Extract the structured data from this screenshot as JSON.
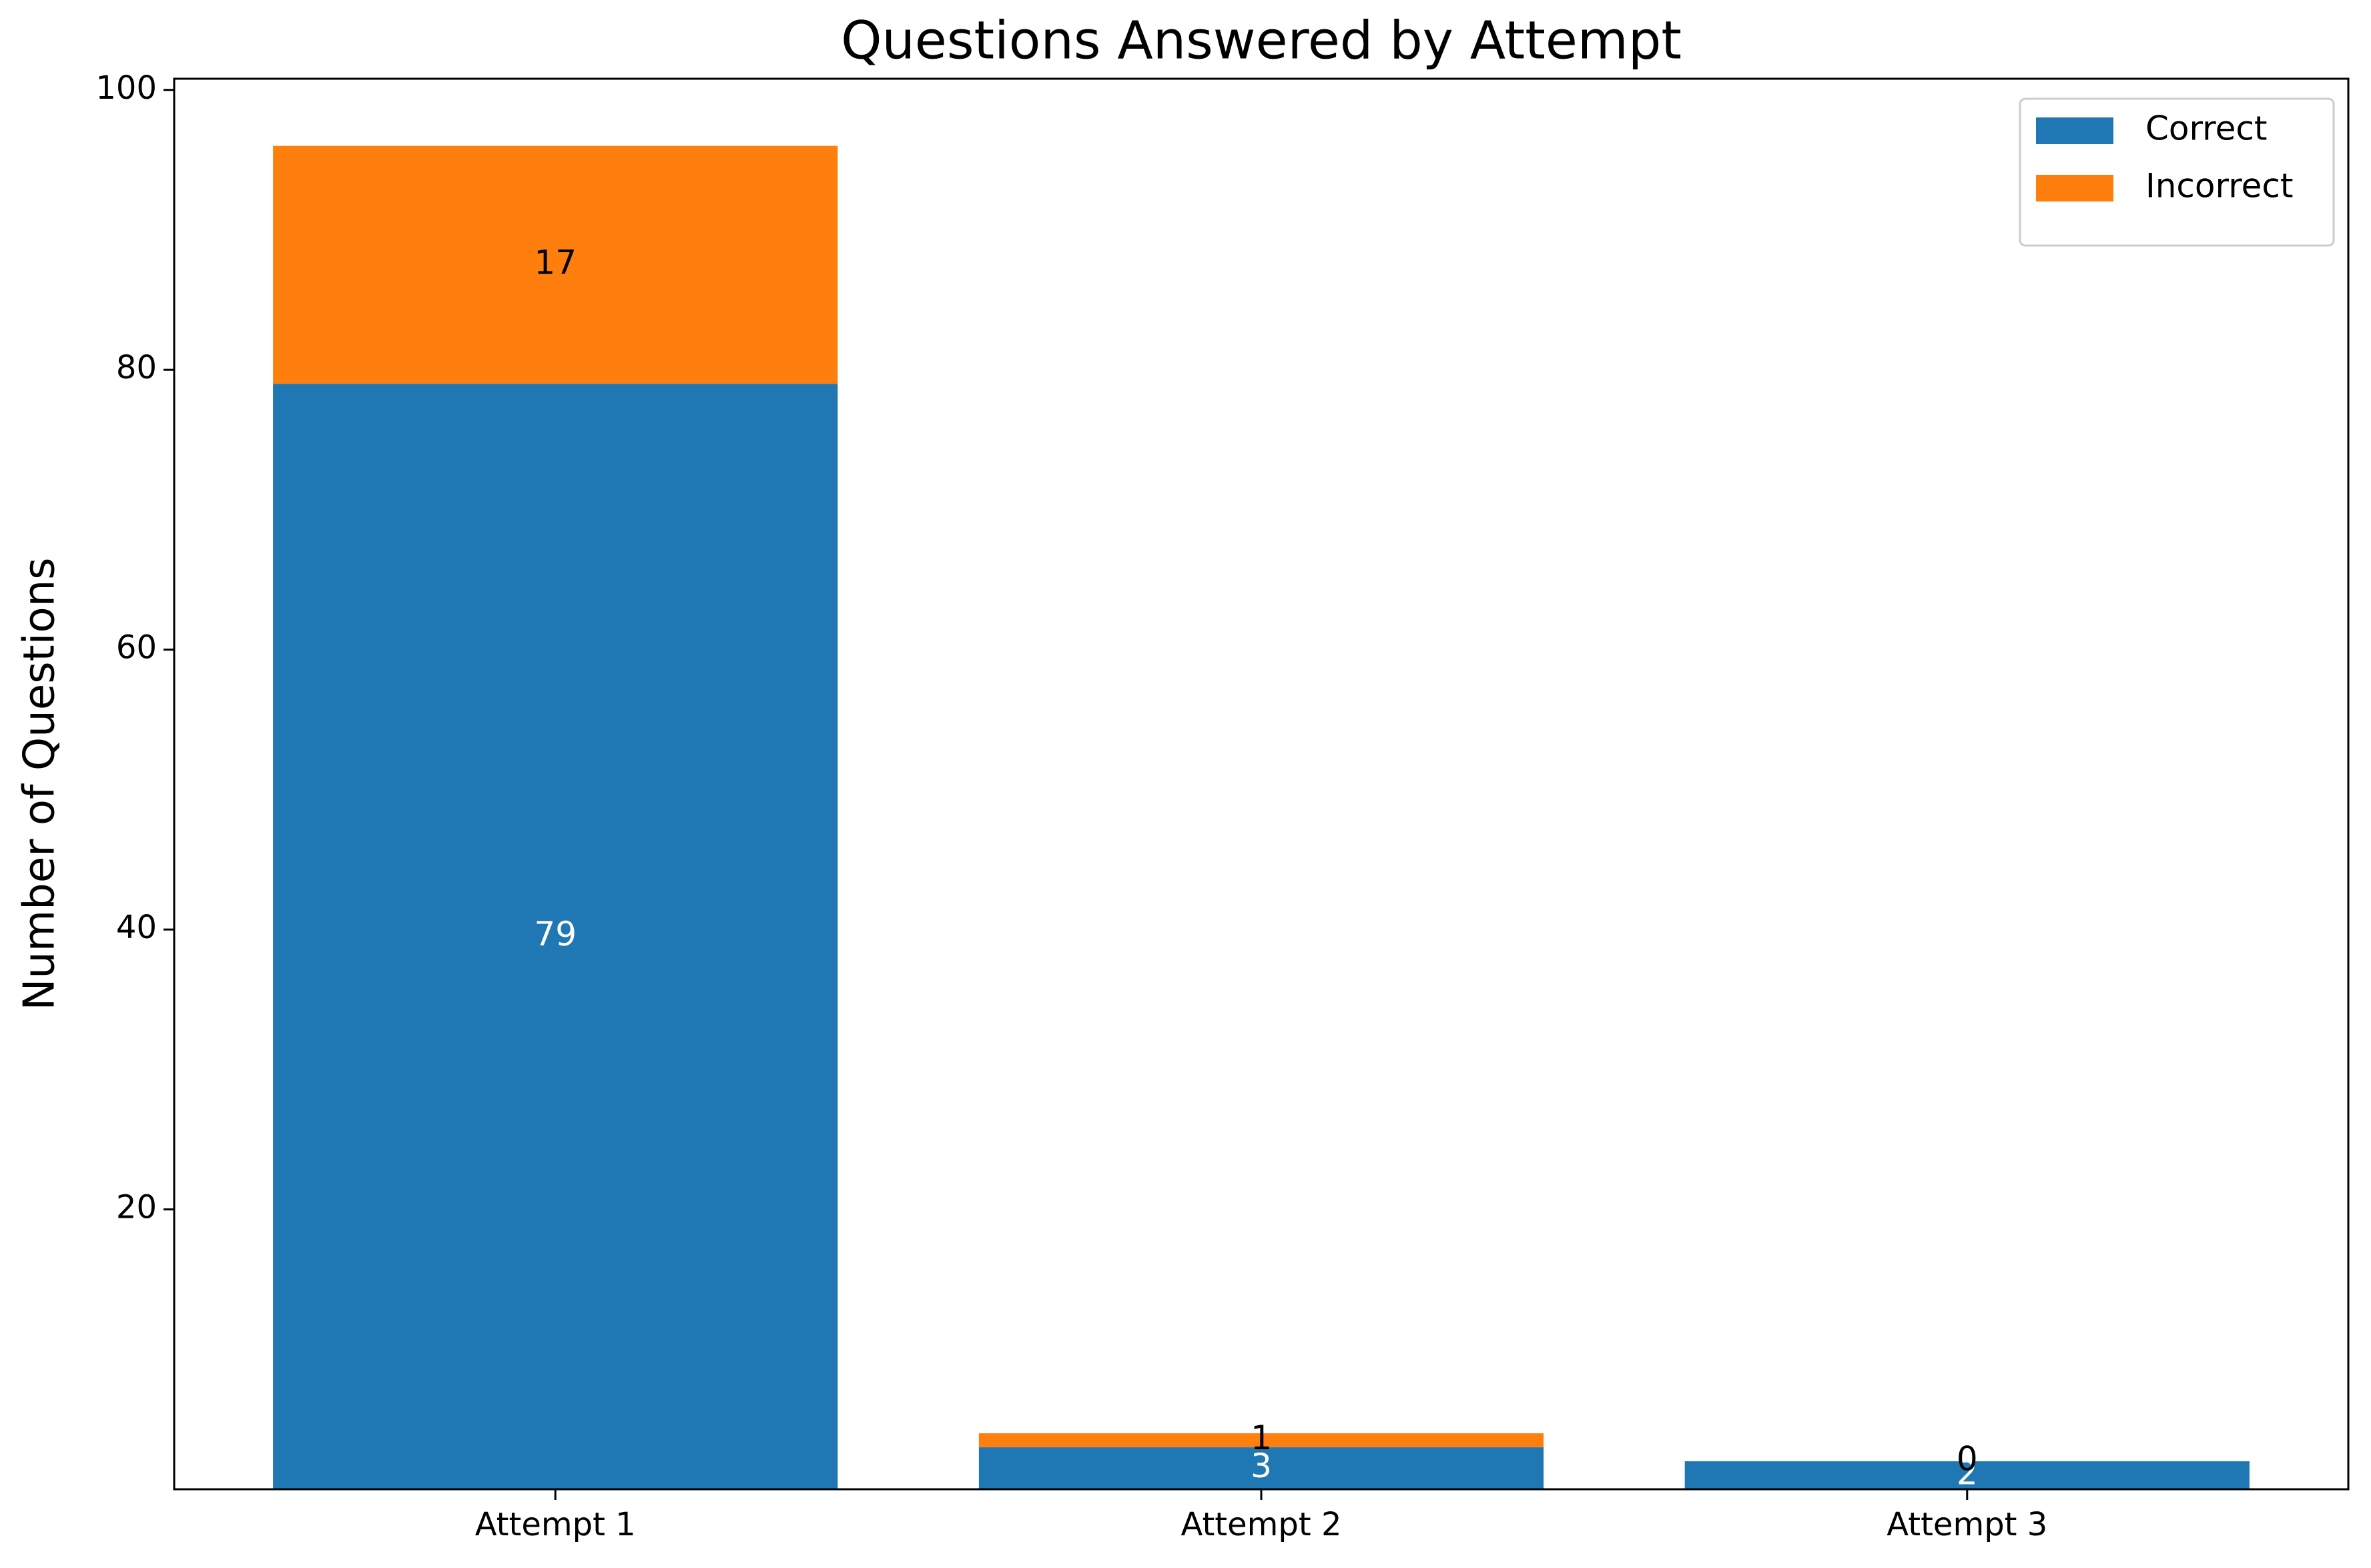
{
  "chart_data": {
    "type": "stacked_bar",
    "title": "Questions Answered by Attempt",
    "y_label": "Number of Questions",
    "categories": [
      "Attempt 1",
      "Attempt 2",
      "Attempt 3"
    ],
    "series": [
      {
        "name": "Correct",
        "color": "#1f77b4",
        "values": [
          79,
          3,
          2
        ]
      },
      {
        "name": "Incorrect",
        "color": "#ff7f0e",
        "values": [
          17,
          1,
          0
        ]
      }
    ],
    "ylim": [
      0,
      100.8
    ],
    "yticks": [
      20,
      40,
      60,
      80,
      100
    ],
    "grid": false,
    "legend": "upper right"
  }
}
